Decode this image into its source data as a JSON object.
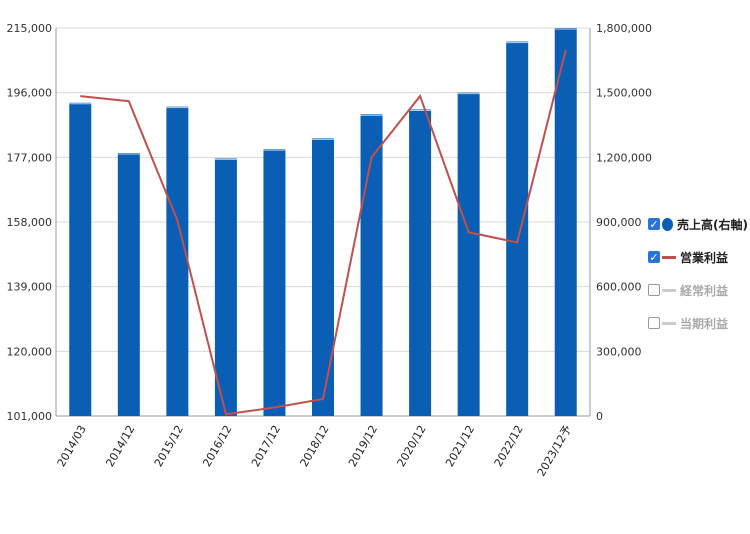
{
  "chart_data": {
    "type": "bar+line",
    "categories": [
      "2014/03",
      "2014/12",
      "2015/12",
      "2016/12",
      "2017/12",
      "2018/12",
      "2019/12",
      "2020/12",
      "2021/12",
      "2022/12",
      "2023/12予"
    ],
    "series": [
      {
        "name": "売上高(右軸)",
        "type": "bar",
        "axis": "right",
        "color": "#0a5fb4",
        "values": [
          1453000,
          1220000,
          1435000,
          1195000,
          1238000,
          1288000,
          1400000,
          1422000,
          1500000,
          1737000,
          1800000
        ]
      },
      {
        "name": "営業利益",
        "type": "line",
        "axis": "left",
        "color": "#c0504d",
        "values": [
          195000,
          193500,
          158500,
          101500,
          103500,
          106000,
          177000,
          195000,
          155000,
          152000,
          208500
        ]
      }
    ],
    "left_axis": {
      "ylim": [
        101000,
        215000
      ],
      "ticks": [
        "215,000",
        "196,000",
        "177,000",
        "158,000",
        "139,000",
        "120,000",
        "101,000"
      ]
    },
    "right_axis": {
      "ylim": [
        0,
        1800000
      ],
      "ticks": [
        "1,800,000",
        "1,500,000",
        "1,200,000",
        "900,000",
        "600,000",
        "300,000",
        "0"
      ]
    },
    "grid": true,
    "legend_position": "right"
  },
  "legend": [
    {
      "label": "売上高(右軸)",
      "checked": true,
      "color": "#0a5fb4",
      "symbol": "dot"
    },
    {
      "label": "営業利益",
      "checked": true,
      "color": "#c0504d",
      "symbol": "line"
    },
    {
      "label": "経常利益",
      "checked": false,
      "color": "#cccccc",
      "symbol": "line"
    },
    {
      "label": "当期利益",
      "checked": false,
      "color": "#cccccc",
      "symbol": "line"
    }
  ]
}
